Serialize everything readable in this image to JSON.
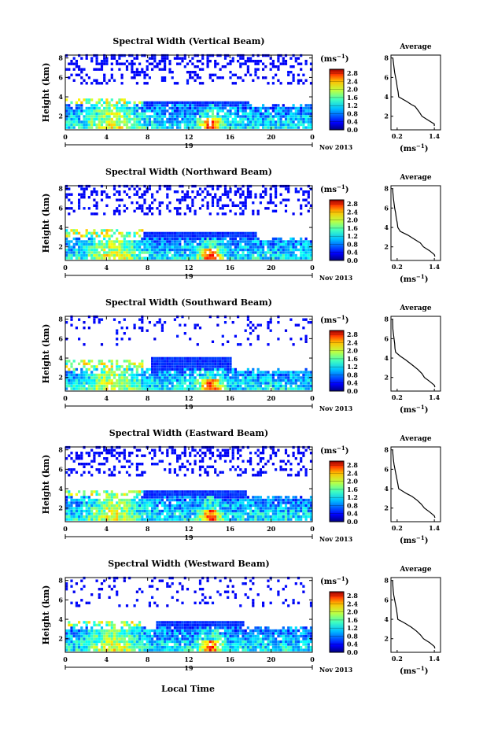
{
  "figure": {
    "xlabel_bottom": "Local Time",
    "date_label": "Nov 2013",
    "day_label": "19",
    "unit_label": "(ms",
    "unit_sup": "−1",
    "unit_close": ")",
    "ylabel": "Height (km)",
    "avg_title": "Average"
  },
  "chart_data": [
    {
      "type": "heatmap",
      "title": "Spectral Width (Vertical Beam)",
      "ylabel": "Height (km)",
      "x_ticks": [
        "0",
        "4",
        "8",
        "12",
        "16",
        "20",
        "0"
      ],
      "y_ticks": [
        "2",
        "4",
        "6",
        "8"
      ],
      "xlim": [
        0,
        24
      ],
      "ylim": [
        0.6,
        8.3
      ],
      "colorbar": {
        "ticks": [
          "0.0",
          "0.4",
          "0.8",
          "1.2",
          "1.6",
          "2.0",
          "2.4",
          "2.8"
        ],
        "range": [
          0,
          3.0
        ]
      },
      "layers": {
        "lower_top_km": 3.0,
        "mid_band_km": [
          2.6,
          3.3
        ],
        "mid_band_hours": [
          7.5,
          17.8
        ],
        "upper_cover": 0.32
      },
      "average_profile": {
        "x_ticks": [
          "0.2",
          "1.4"
        ],
        "y_ticks": [
          "2",
          "4",
          "6",
          "8"
        ],
        "xlim": [
          0,
          1.6
        ],
        "ylim": [
          0.6,
          8.3
        ],
        "height_km": [
          8.0,
          7.0,
          6.5,
          6.0,
          5.5,
          5.0,
          4.5,
          4.0,
          3.5,
          3.2,
          3.0,
          2.5,
          2.0,
          1.6,
          1.2,
          1.0
        ],
        "value": [
          0.06,
          0.1,
          0.12,
          0.15,
          0.18,
          0.2,
          0.23,
          0.25,
          0.52,
          0.66,
          0.78,
          0.9,
          1.0,
          1.2,
          1.4,
          1.4
        ]
      }
    },
    {
      "type": "heatmap",
      "title": "Spectral Width (Northward Beam)",
      "ylabel": "Height (km)",
      "x_ticks": [
        "0",
        "4",
        "8",
        "12",
        "16",
        "20",
        "0"
      ],
      "y_ticks": [
        "2",
        "4",
        "6",
        "8"
      ],
      "xlim": [
        0,
        24
      ],
      "ylim": [
        0.6,
        8.3
      ],
      "colorbar": {
        "ticks": [
          "0.0",
          "0.4",
          "0.8",
          "1.2",
          "1.6",
          "2.0",
          "2.4",
          "2.8"
        ],
        "range": [
          0,
          3.0
        ]
      },
      "layers": {
        "lower_top_km": 2.7,
        "mid_band_km": [
          2.5,
          3.4
        ],
        "mid_band_hours": [
          7.5,
          18.5
        ],
        "upper_cover": 0.3
      },
      "average_profile": {
        "x_ticks": [
          "0.2",
          "1.4"
        ],
        "y_ticks": [
          "2",
          "4",
          "6",
          "8"
        ],
        "xlim": [
          0,
          1.6
        ],
        "ylim": [
          0.6,
          8.3
        ],
        "height_km": [
          8.0,
          7.0,
          6.5,
          6.0,
          5.5,
          5.0,
          4.5,
          4.0,
          3.6,
          3.2,
          2.8,
          2.4,
          2.0,
          1.6,
          1.2,
          1.0
        ],
        "value": [
          0.05,
          0.08,
          0.1,
          0.12,
          0.15,
          0.17,
          0.2,
          0.22,
          0.3,
          0.55,
          0.75,
          0.95,
          1.05,
          1.25,
          1.4,
          1.42
        ]
      }
    },
    {
      "type": "heatmap",
      "title": "Spectral Width (Southward Beam)",
      "ylabel": "Height (km)",
      "x_ticks": [
        "0",
        "4",
        "8",
        "12",
        "16",
        "20",
        "0"
      ],
      "y_ticks": [
        "2",
        "4",
        "6",
        "8"
      ],
      "xlim": [
        0,
        24
      ],
      "ylim": [
        0.6,
        8.3
      ],
      "colorbar": {
        "ticks": [
          "0.0",
          "0.4",
          "0.8",
          "1.2",
          "1.6",
          "2.0",
          "2.4",
          "2.8"
        ],
        "range": [
          0,
          3.0
        ]
      },
      "layers": {
        "lower_top_km": 2.6,
        "mid_band_km": [
          2.5,
          4.0
        ],
        "mid_band_hours": [
          8.2,
          16.0
        ],
        "upper_cover": 0.12
      },
      "average_profile": {
        "x_ticks": [
          "0.2",
          "1.4"
        ],
        "y_ticks": [
          "2",
          "4",
          "6",
          "8"
        ],
        "xlim": [
          0,
          1.6
        ],
        "ylim": [
          0.6,
          8.3
        ],
        "height_km": [
          8.0,
          7.0,
          6.5,
          6.0,
          5.5,
          5.0,
          4.6,
          4.2,
          3.8,
          3.2,
          2.8,
          2.4,
          2.0,
          1.6,
          1.2,
          1.0
        ],
        "value": [
          0.05,
          0.06,
          0.08,
          0.1,
          0.12,
          0.13,
          0.15,
          0.3,
          0.48,
          0.72,
          0.88,
          1.0,
          1.08,
          1.25,
          1.4,
          1.42
        ]
      }
    },
    {
      "type": "heatmap",
      "title": "Spectral Width (Eastward Beam)",
      "ylabel": "Height (km)",
      "x_ticks": [
        "0",
        "4",
        "8",
        "12",
        "16",
        "20",
        "0"
      ],
      "y_ticks": [
        "2",
        "4",
        "6",
        "8"
      ],
      "xlim": [
        0,
        24
      ],
      "ylim": [
        0.6,
        8.3
      ],
      "colorbar": {
        "ticks": [
          "0.0",
          "0.4",
          "0.8",
          "1.2",
          "1.6",
          "2.0",
          "2.4",
          "2.8"
        ],
        "range": [
          0,
          3.0
        ]
      },
      "layers": {
        "lower_top_km": 3.0,
        "mid_band_km": [
          2.6,
          3.8
        ],
        "mid_band_hours": [
          7.5,
          17.5
        ],
        "upper_cover": 0.3
      },
      "average_profile": {
        "x_ticks": [
          "0.2",
          "1.4"
        ],
        "y_ticks": [
          "2",
          "4",
          "6",
          "8"
        ],
        "xlim": [
          0,
          1.6
        ],
        "ylim": [
          0.6,
          8.3
        ],
        "height_km": [
          8.0,
          7.0,
          6.5,
          6.0,
          5.5,
          5.0,
          4.5,
          4.0,
          3.5,
          3.2,
          2.8,
          2.4,
          2.0,
          1.6,
          1.2,
          1.0
        ],
        "value": [
          0.05,
          0.08,
          0.1,
          0.13,
          0.16,
          0.19,
          0.22,
          0.25,
          0.5,
          0.68,
          0.85,
          0.98,
          1.08,
          1.25,
          1.4,
          1.42
        ]
      }
    },
    {
      "type": "heatmap",
      "title": "Spectral Width (Westward Beam)",
      "ylabel": "Height (km)",
      "x_ticks": [
        "0",
        "4",
        "8",
        "12",
        "16",
        "20",
        "0"
      ],
      "y_ticks": [
        "2",
        "4",
        "6",
        "8"
      ],
      "xlim": [
        0,
        24
      ],
      "ylim": [
        0.6,
        8.3
      ],
      "colorbar": {
        "ticks": [
          "0.0",
          "0.4",
          "0.8",
          "1.2",
          "1.6",
          "2.0",
          "2.4",
          "2.8"
        ],
        "range": [
          0,
          3.0
        ]
      },
      "layers": {
        "lower_top_km": 3.0,
        "mid_band_km": [
          2.6,
          3.6
        ],
        "mid_band_hours": [
          8.8,
          17.2
        ],
        "upper_cover": 0.14
      },
      "average_profile": {
        "x_ticks": [
          "0.2",
          "1.4"
        ],
        "y_ticks": [
          "2",
          "4",
          "6",
          "8"
        ],
        "xlim": [
          0,
          1.6
        ],
        "ylim": [
          0.6,
          8.3
        ],
        "height_km": [
          8.0,
          7.0,
          6.5,
          6.0,
          5.5,
          5.0,
          4.5,
          4.0,
          3.6,
          3.2,
          2.8,
          2.4,
          2.0,
          1.6,
          1.2,
          1.0
        ],
        "value": [
          0.05,
          0.07,
          0.09,
          0.12,
          0.15,
          0.18,
          0.2,
          0.22,
          0.45,
          0.65,
          0.82,
          0.95,
          1.05,
          1.25,
          1.4,
          1.42
        ]
      }
    }
  ]
}
